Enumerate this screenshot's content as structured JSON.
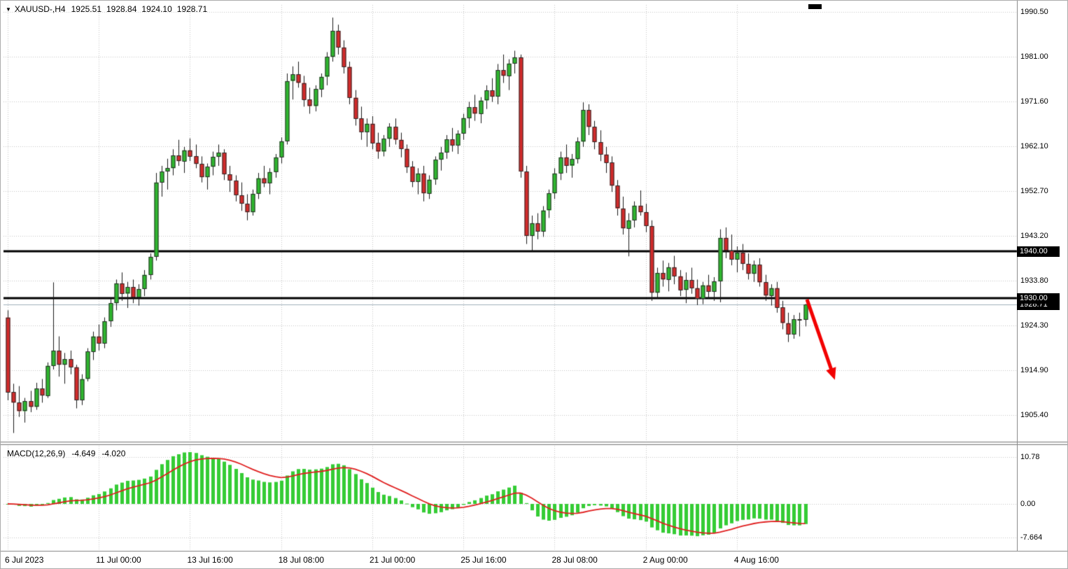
{
  "header": {
    "collapse_icon": "▼",
    "symbol_period": "XAUUSD-,H4",
    "open": "1925.51",
    "high": "1928.84",
    "low": "1924.10",
    "close": "1928.71"
  },
  "colors": {
    "bull": "#2eb82e",
    "bear": "#d42b2b",
    "wick": "#1a1a1a",
    "body_border": "#2b2b2b",
    "grid": "#c6c6c6",
    "level_line": "#000000",
    "bid_line": "#9fafbc",
    "macd_histogram": "#35cc35",
    "macd_signal": "#e01f1f",
    "arrow": "#f20000"
  },
  "chart_data": {
    "type": "candlestick",
    "symbol": "XAUUSD-",
    "timeframe": "H4",
    "price_axis_labels": [
      "1990.50",
      "1981.00",
      "1971.60",
      "1962.10",
      "1952.70",
      "1943.20",
      "1933.80",
      "1924.30",
      "1914.90",
      "1905.40"
    ],
    "macd_axis_labels": [
      "10.78",
      "0.00",
      "-7.664"
    ],
    "time_axis_labels": [
      {
        "text": "6 Jul 2023",
        "bar": 0
      },
      {
        "text": "11 Jul 00:00",
        "bar": 16
      },
      {
        "text": "13 Jul 16:00",
        "bar": 32
      },
      {
        "text": "18 Jul 08:00",
        "bar": 48
      },
      {
        "text": "21 Jul 00:00",
        "bar": 64
      },
      {
        "text": "25 Jul 16:00",
        "bar": 80
      },
      {
        "text": "28 Jul 08:00",
        "bar": 96
      },
      {
        "text": "2 Aug 00:00",
        "bar": 112
      },
      {
        "text": "4 Aug 16:00",
        "bar": 128
      }
    ],
    "levels": [
      {
        "label": "1940.00",
        "value": 1940.0
      },
      {
        "label": "1930.00",
        "value": 1930.0
      }
    ],
    "bid": {
      "label": "1928.71",
      "value": 1928.71
    },
    "ohlc_current": {
      "open": 1925.51,
      "high": 1928.84,
      "low": 1924.1,
      "close": 1928.71
    },
    "macd": {
      "label": "MACD(12,26,9)",
      "fast": 12,
      "slow": 26,
      "signal_period": 9,
      "main_value_label": "-4.649",
      "signal_value_label": "-4.020",
      "main_value": -4.649,
      "signal_value": -4.02
    },
    "arrow": {
      "from_bar": 140.3,
      "from_price": 1929.8,
      "to_bar": 145.2,
      "to_price": 1912.8
    },
    "candles": [
      [
        1926.0,
        1927.5,
        1908.5,
        1910.2
      ],
      [
        1910.2,
        1912.0,
        1901.6,
        1908.0
      ],
      [
        1908.0,
        1911.5,
        1905.0,
        1906.2
      ],
      [
        1906.2,
        1909.0,
        1903.8,
        1908.3
      ],
      [
        1908.3,
        1910.5,
        1906.0,
        1907.1
      ],
      [
        1907.1,
        1912.2,
        1906.5,
        1911.0
      ],
      [
        1911.0,
        1913.0,
        1908.0,
        1909.5
      ],
      [
        1909.5,
        1916.5,
        1909.0,
        1915.8
      ],
      [
        1915.8,
        1933.4,
        1915.0,
        1919.0
      ],
      [
        1919.0,
        1922.0,
        1913.5,
        1916.0
      ],
      [
        1916.0,
        1918.5,
        1912.0,
        1917.2
      ],
      [
        1917.2,
        1919.0,
        1914.0,
        1915.5
      ],
      [
        1915.5,
        1916.0,
        1906.8,
        1908.5
      ],
      [
        1908.5,
        1914.0,
        1907.5,
        1913.0
      ],
      [
        1913.0,
        1919.5,
        1912.5,
        1918.8
      ],
      [
        1918.8,
        1923.0,
        1917.0,
        1922.0
      ],
      [
        1922.0,
        1924.5,
        1919.0,
        1920.5
      ],
      [
        1920.5,
        1926.0,
        1919.5,
        1925.2
      ],
      [
        1925.2,
        1930.0,
        1924.0,
        1929.0
      ],
      [
        1929.0,
        1934.0,
        1927.5,
        1933.2
      ],
      [
        1933.2,
        1935.5,
        1929.5,
        1931.0
      ],
      [
        1931.0,
        1933.5,
        1928.0,
        1932.4
      ],
      [
        1932.4,
        1934.0,
        1929.0,
        1930.2
      ],
      [
        1930.2,
        1933.0,
        1928.5,
        1932.0
      ],
      [
        1932.0,
        1936.0,
        1930.5,
        1935.0
      ],
      [
        1935.0,
        1939.5,
        1934.0,
        1938.8
      ],
      [
        1938.8,
        1956.5,
        1938.0,
        1954.5
      ],
      [
        1954.5,
        1958.0,
        1951.5,
        1956.8
      ],
      [
        1956.8,
        1959.5,
        1953.0,
        1957.5
      ],
      [
        1957.5,
        1961.5,
        1956.0,
        1960.2
      ],
      [
        1960.2,
        1963.5,
        1958.0,
        1959.0
      ],
      [
        1959.0,
        1962.0,
        1956.5,
        1961.3
      ],
      [
        1961.3,
        1963.8,
        1959.0,
        1960.0
      ],
      [
        1960.0,
        1962.5,
        1957.5,
        1958.4
      ],
      [
        1958.4,
        1960.0,
        1954.5,
        1955.6
      ],
      [
        1955.6,
        1958.5,
        1953.0,
        1957.8
      ],
      [
        1957.8,
        1961.0,
        1956.0,
        1959.9
      ],
      [
        1959.9,
        1962.5,
        1958.0,
        1960.8
      ],
      [
        1960.8,
        1961.5,
        1955.0,
        1956.2
      ],
      [
        1956.2,
        1958.0,
        1952.5,
        1954.9
      ],
      [
        1954.9,
        1956.0,
        1950.5,
        1951.8
      ],
      [
        1951.8,
        1954.5,
        1948.5,
        1950.0
      ],
      [
        1950.0,
        1952.0,
        1946.5,
        1948.2
      ],
      [
        1948.2,
        1953.0,
        1947.5,
        1952.1
      ],
      [
        1952.1,
        1956.5,
        1951.0,
        1955.4
      ],
      [
        1955.4,
        1958.0,
        1953.5,
        1954.3
      ],
      [
        1954.3,
        1957.5,
        1952.0,
        1956.7
      ],
      [
        1956.7,
        1960.5,
        1955.5,
        1959.8
      ],
      [
        1959.8,
        1964.0,
        1958.5,
        1963.2
      ],
      [
        1963.2,
        1977.5,
        1962.5,
        1975.9
      ],
      [
        1975.9,
        1979.0,
        1972.0,
        1977.3
      ],
      [
        1977.3,
        1980.0,
        1974.5,
        1975.5
      ],
      [
        1975.5,
        1977.0,
        1970.5,
        1972.0
      ],
      [
        1972.0,
        1974.5,
        1969.0,
        1970.6
      ],
      [
        1970.6,
        1975.0,
        1969.5,
        1974.2
      ],
      [
        1974.2,
        1977.5,
        1972.5,
        1976.8
      ],
      [
        1976.8,
        1982.0,
        1975.0,
        1981.0
      ],
      [
        1981.0,
        1989.3,
        1980.0,
        1986.5
      ],
      [
        1986.5,
        1987.8,
        1981.5,
        1983.0
      ],
      [
        1983.0,
        1984.5,
        1977.5,
        1978.9
      ],
      [
        1978.9,
        1980.0,
        1971.0,
        1972.4
      ],
      [
        1972.4,
        1974.0,
        1966.5,
        1968.0
      ],
      [
        1968.0,
        1970.5,
        1963.5,
        1965.1
      ],
      [
        1965.1,
        1968.0,
        1962.0,
        1966.9
      ],
      [
        1966.9,
        1968.5,
        1961.5,
        1962.8
      ],
      [
        1962.8,
        1965.0,
        1959.5,
        1961.0
      ],
      [
        1961.0,
        1964.5,
        1960.0,
        1963.7
      ],
      [
        1963.7,
        1967.0,
        1962.0,
        1966.2
      ],
      [
        1966.2,
        1968.0,
        1962.5,
        1963.5
      ],
      [
        1963.5,
        1965.0,
        1959.8,
        1961.6
      ],
      [
        1961.6,
        1962.5,
        1956.5,
        1957.8
      ],
      [
        1957.8,
        1959.0,
        1953.5,
        1954.6
      ],
      [
        1954.6,
        1957.5,
        1952.0,
        1956.4
      ],
      [
        1956.4,
        1958.0,
        1950.5,
        1952.2
      ],
      [
        1952.2,
        1956.0,
        1951.0,
        1955.1
      ],
      [
        1955.1,
        1960.0,
        1954.0,
        1959.3
      ],
      [
        1959.3,
        1962.0,
        1957.0,
        1960.8
      ],
      [
        1960.8,
        1964.5,
        1959.5,
        1963.6
      ],
      [
        1963.6,
        1966.0,
        1961.0,
        1962.3
      ],
      [
        1962.3,
        1965.5,
        1960.5,
        1964.8
      ],
      [
        1964.8,
        1969.0,
        1963.5,
        1968.1
      ],
      [
        1968.1,
        1971.5,
        1966.0,
        1970.4
      ],
      [
        1970.4,
        1973.0,
        1967.5,
        1969.0
      ],
      [
        1969.0,
        1972.5,
        1967.0,
        1971.8
      ],
      [
        1971.8,
        1975.0,
        1970.0,
        1973.9
      ],
      [
        1973.9,
        1976.5,
        1971.5,
        1972.6
      ],
      [
        1972.6,
        1979.5,
        1971.0,
        1978.2
      ],
      [
        1978.2,
        1981.5,
        1975.5,
        1977.0
      ],
      [
        1977.0,
        1980.5,
        1974.0,
        1979.6
      ],
      [
        1979.6,
        1982.3,
        1977.5,
        1980.9
      ],
      [
        1980.9,
        1981.5,
        1955.5,
        1956.8
      ],
      [
        1956.8,
        1958.0,
        1941.5,
        1943.2
      ],
      [
        1943.2,
        1947.5,
        1940.0,
        1945.9
      ],
      [
        1945.9,
        1948.0,
        1942.5,
        1944.1
      ],
      [
        1944.1,
        1949.5,
        1943.0,
        1948.6
      ],
      [
        1948.6,
        1953.0,
        1947.0,
        1952.2
      ],
      [
        1952.2,
        1957.5,
        1951.0,
        1956.4
      ],
      [
        1956.4,
        1961.0,
        1955.0,
        1959.8
      ],
      [
        1959.8,
        1962.5,
        1956.5,
        1958.0
      ],
      [
        1958.0,
        1960.5,
        1955.5,
        1959.4
      ],
      [
        1959.4,
        1964.0,
        1958.5,
        1963.1
      ],
      [
        1963.1,
        1971.4,
        1962.0,
        1969.8
      ],
      [
        1969.8,
        1971.0,
        1964.5,
        1966.2
      ],
      [
        1966.2,
        1967.5,
        1961.5,
        1963.0
      ],
      [
        1963.0,
        1965.5,
        1959.0,
        1960.4
      ],
      [
        1960.4,
        1962.0,
        1956.5,
        1958.7
      ],
      [
        1958.7,
        1960.0,
        1952.5,
        1953.8
      ],
      [
        1953.8,
        1955.0,
        1947.5,
        1949.0
      ],
      [
        1949.0,
        1951.5,
        1943.5,
        1944.8
      ],
      [
        1944.8,
        1948.0,
        1938.9,
        1946.5
      ],
      [
        1946.5,
        1950.5,
        1945.0,
        1949.6
      ],
      [
        1949.6,
        1952.8,
        1947.5,
        1948.2
      ],
      [
        1948.2,
        1950.0,
        1944.0,
        1945.3
      ],
      [
        1945.3,
        1946.5,
        1929.5,
        1931.2
      ],
      [
        1931.2,
        1936.5,
        1930.0,
        1935.4
      ],
      [
        1935.4,
        1938.0,
        1932.5,
        1934.0
      ],
      [
        1934.0,
        1937.5,
        1931.5,
        1936.6
      ],
      [
        1936.6,
        1939.0,
        1933.0,
        1934.7
      ],
      [
        1934.7,
        1936.0,
        1930.5,
        1931.8
      ],
      [
        1931.8,
        1935.5,
        1929.0,
        1933.9
      ],
      [
        1933.9,
        1936.5,
        1931.0,
        1932.2
      ],
      [
        1932.2,
        1934.0,
        1928.6,
        1930.0
      ],
      [
        1930.0,
        1933.5,
        1928.8,
        1932.8
      ],
      [
        1932.8,
        1935.0,
        1930.0,
        1931.4
      ],
      [
        1931.4,
        1934.5,
        1929.5,
        1933.6
      ],
      [
        1933.6,
        1944.6,
        1929.2,
        1942.8
      ],
      [
        1942.8,
        1945.0,
        1938.5,
        1940.1
      ],
      [
        1940.1,
        1943.5,
        1937.0,
        1938.2
      ],
      [
        1938.2,
        1941.0,
        1935.5,
        1939.7
      ],
      [
        1939.7,
        1941.5,
        1936.0,
        1937.3
      ],
      [
        1937.3,
        1939.5,
        1934.0,
        1935.2
      ],
      [
        1935.2,
        1938.0,
        1933.5,
        1937.1
      ],
      [
        1937.1,
        1938.5,
        1932.5,
        1933.4
      ],
      [
        1933.4,
        1935.0,
        1929.5,
        1930.6
      ],
      [
        1930.6,
        1933.0,
        1928.5,
        1932.2
      ],
      [
        1932.2,
        1933.5,
        1927.0,
        1928.1
      ],
      [
        1928.1,
        1929.5,
        1923.5,
        1924.8
      ],
      [
        1924.8,
        1927.0,
        1920.8,
        1922.4
      ],
      [
        1922.4,
        1926.5,
        1921.5,
        1925.6
      ],
      [
        1925.6,
        1927.0,
        1922.0,
        1925.5
      ],
      [
        1925.51,
        1928.84,
        1924.1,
        1928.71
      ]
    ]
  }
}
